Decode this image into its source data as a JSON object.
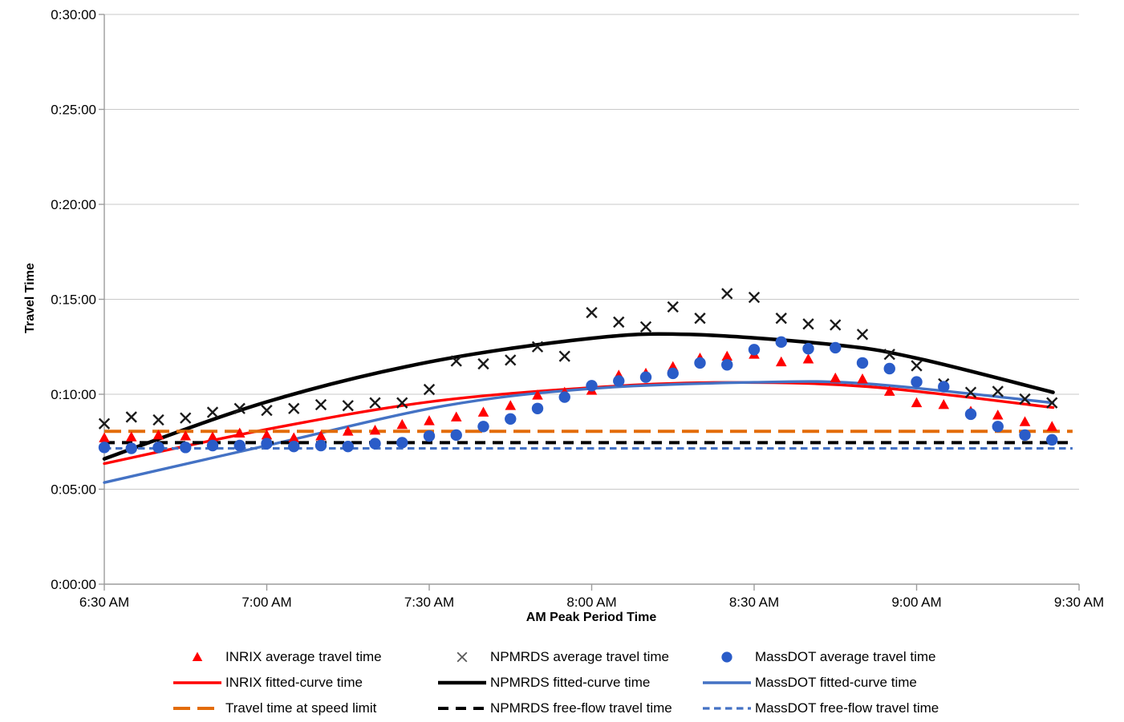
{
  "chart_data": {
    "type": "scatter",
    "y_axis_title": "Travel Time",
    "x_axis_title": "AM Peak Period Time",
    "x_ticks": [
      "6:30 AM",
      "7:00 AM",
      "7:30 AM",
      "8:00 AM",
      "8:30 AM",
      "9:00 AM",
      "9:30 AM"
    ],
    "y_ticks": [
      "0:00:00",
      "0:05:00",
      "0:10:00",
      "0:15:00",
      "0:20:00",
      "0:25:00",
      "0:30:00"
    ],
    "x_range_hours": [
      6.5,
      9.5
    ],
    "y_range_minutes": [
      0,
      30
    ],
    "grid": "horizontal-only",
    "legend_position": "bottom",
    "scatter_x_start_hour": 6.5,
    "scatter_x_interval_minutes": 5,
    "colors": {
      "inrix_red": "#FF0000",
      "npmrds_black": "#000000",
      "massdot_blue_marker": "#2A5CC8",
      "massdot_blue_line": "#4472C4",
      "speed_limit_orange": "#E36C09",
      "gridline_gray": "#C9C9C9",
      "axis_gray": "#9C9C9C"
    },
    "series": [
      {
        "name": "INRIX average travel time",
        "type": "scatter",
        "marker": "triangle",
        "color": "#FF0000",
        "values_min": [
          7.7,
          7.75,
          7.85,
          7.8,
          7.75,
          7.95,
          7.85,
          7.7,
          7.8,
          8.05,
          8.1,
          8.4,
          8.6,
          8.8,
          9.05,
          9.4,
          9.95,
          10.1,
          10.2,
          11.0,
          11.1,
          11.45,
          11.9,
          12.0,
          12.1,
          11.7,
          11.85,
          10.85,
          10.8,
          10.15,
          9.55,
          9.45,
          9.1,
          8.9,
          8.55,
          8.3
        ]
      },
      {
        "name": "NPMRDS average travel time",
        "type": "scatter",
        "marker": "x",
        "color": "#1A1A1A",
        "legend_color": "#595959",
        "values_min": [
          8.45,
          8.8,
          8.65,
          8.75,
          9.05,
          9.25,
          9.15,
          9.25,
          9.45,
          9.4,
          9.55,
          9.55,
          10.25,
          11.75,
          11.6,
          11.8,
          12.5,
          12.0,
          14.3,
          13.8,
          13.55,
          14.6,
          14.0,
          15.3,
          15.1,
          14.0,
          13.7,
          13.65,
          13.15,
          12.1,
          11.5,
          10.55,
          10.1,
          10.15,
          9.75,
          9.55
        ]
      },
      {
        "name": "MassDOT average travel time",
        "type": "scatter",
        "marker": "circle",
        "color": "#2A5CC8",
        "values_min": [
          7.2,
          7.15,
          7.2,
          7.2,
          7.3,
          7.3,
          7.4,
          7.25,
          7.3,
          7.25,
          7.4,
          7.45,
          7.8,
          7.85,
          8.3,
          8.7,
          9.25,
          9.85,
          10.45,
          10.7,
          10.9,
          11.1,
          11.65,
          11.55,
          12.35,
          12.75,
          12.4,
          12.45,
          11.65,
          11.35,
          10.65,
          10.4,
          8.95,
          8.3,
          7.85,
          7.6
        ]
      },
      {
        "name": "INRIX fitted-curve time",
        "type": "curve",
        "color": "#FF0000",
        "width": 3.4,
        "points": [
          [
            6.5,
            6.35
          ],
          [
            7.0,
            8.15
          ],
          [
            7.5,
            9.6
          ],
          [
            8.0,
            10.35
          ],
          [
            8.4,
            10.62
          ],
          [
            8.85,
            10.4
          ],
          [
            9.42,
            9.3
          ]
        ]
      },
      {
        "name": "NPMRDS fitted-curve time",
        "type": "curve",
        "color": "#000000",
        "width": 4.5,
        "points": [
          [
            6.5,
            6.6
          ],
          [
            7.0,
            9.6
          ],
          [
            7.5,
            11.7
          ],
          [
            8.0,
            12.95
          ],
          [
            8.3,
            13.15
          ],
          [
            8.75,
            12.6
          ],
          [
            9.0,
            11.9
          ],
          [
            9.42,
            10.1
          ]
        ]
      },
      {
        "name": "MassDOT fitted-curve time",
        "type": "curve",
        "color": "#4472C4",
        "width": 3.4,
        "points": [
          [
            6.5,
            5.35
          ],
          [
            7.0,
            7.3
          ],
          [
            7.55,
            9.4
          ],
          [
            8.0,
            10.3
          ],
          [
            8.5,
            10.63
          ],
          [
            8.85,
            10.55
          ],
          [
            9.42,
            9.55
          ]
        ]
      },
      {
        "name": "Travel time at speed limit",
        "type": "hline",
        "style": "long-dash",
        "color": "#E36C09",
        "width": 4,
        "dash": "21 9",
        "value_min": 8.05
      },
      {
        "name": "NPMRDS free-flow travel time",
        "type": "hline",
        "style": "dash",
        "color": "#000000",
        "width": 4,
        "dash": "13 9",
        "value_min": 7.45
      },
      {
        "name": "MassDOT free-flow travel time",
        "type": "hline",
        "style": "short-dash",
        "color": "#4472C4",
        "width": 3.2,
        "dash": "8.5 5.5",
        "value_min": 7.15
      }
    ]
  }
}
